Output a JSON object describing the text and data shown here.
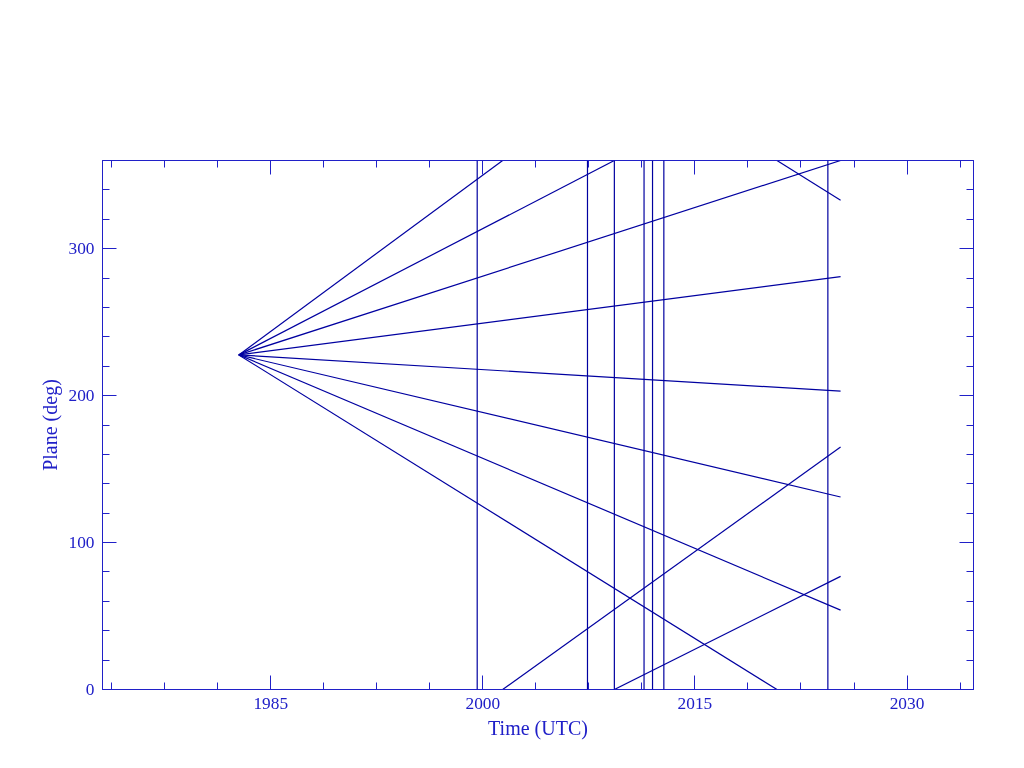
{
  "chart_data": {
    "type": "line",
    "xlabel": "Time (UTC)",
    "ylabel": "Plane (deg)",
    "xlim": [
      1973.1,
      2034.7
    ],
    "ylim": [
      0,
      360
    ],
    "xticks": [
      1985,
      2000,
      2015,
      2030
    ],
    "yticks": [
      0,
      100,
      200,
      300
    ],
    "grid": false,
    "marker": "none",
    "line_style": "solid",
    "series": [
      {
        "color": "#0000a0",
        "x": [
          1982.74,
          2001.4
        ],
        "values": [
          227.7,
          360
        ]
      },
      {
        "color": "#0000a0",
        "x": [
          1982.74,
          2009.3
        ],
        "values": [
          227.7,
          360
        ]
      },
      {
        "color": "#0000a0",
        "x": [
          1982.74,
          2025.3
        ],
        "values": [
          227.7,
          360
        ]
      },
      {
        "color": "#0000a0",
        "x": [
          1982.74,
          2025.3
        ],
        "values": [
          227.7,
          281
        ]
      },
      {
        "color": "#0000a0",
        "x": [
          1982.74,
          2025.3
        ],
        "values": [
          227.7,
          203
        ]
      },
      {
        "color": "#0000a0",
        "x": [
          1982.74,
          2025.3
        ],
        "values": [
          227.7,
          131
        ]
      },
      {
        "color": "#0000a0",
        "x": [
          1982.74,
          2025.3
        ],
        "values": [
          227.7,
          54
        ]
      },
      {
        "color": "#0000a0",
        "x": [
          1982.74,
          2020.8
        ],
        "values": [
          227.7,
          0
        ]
      },
      {
        "color": "#0000a0",
        "x": [
          2001.4,
          2025.3
        ],
        "values": [
          0,
          165
        ]
      },
      {
        "color": "#0000a0",
        "x": [
          2009.3,
          2025.3
        ],
        "values": [
          0,
          77
        ]
      },
      {
        "color": "#0000a0",
        "x": [
          2020.8,
          2025.3
        ],
        "values": [
          360,
          333
        ]
      }
    ],
    "ref_lines": [
      {
        "axis": "x",
        "value": 1999.6,
        "color": "#0000a0"
      },
      {
        "axis": "x",
        "value": 2007.4,
        "color": "#0000a0"
      },
      {
        "axis": "x",
        "value": 2009.3,
        "color": "#0000a0"
      },
      {
        "axis": "x",
        "value": 2011.4,
        "color": "#0000a0"
      },
      {
        "axis": "x",
        "value": 2012.0,
        "color": "#0000a0"
      },
      {
        "axis": "x",
        "value": 2012.8,
        "color": "#0000a0"
      },
      {
        "axis": "x",
        "value": 2024.4,
        "color": "#0000a0"
      }
    ]
  }
}
